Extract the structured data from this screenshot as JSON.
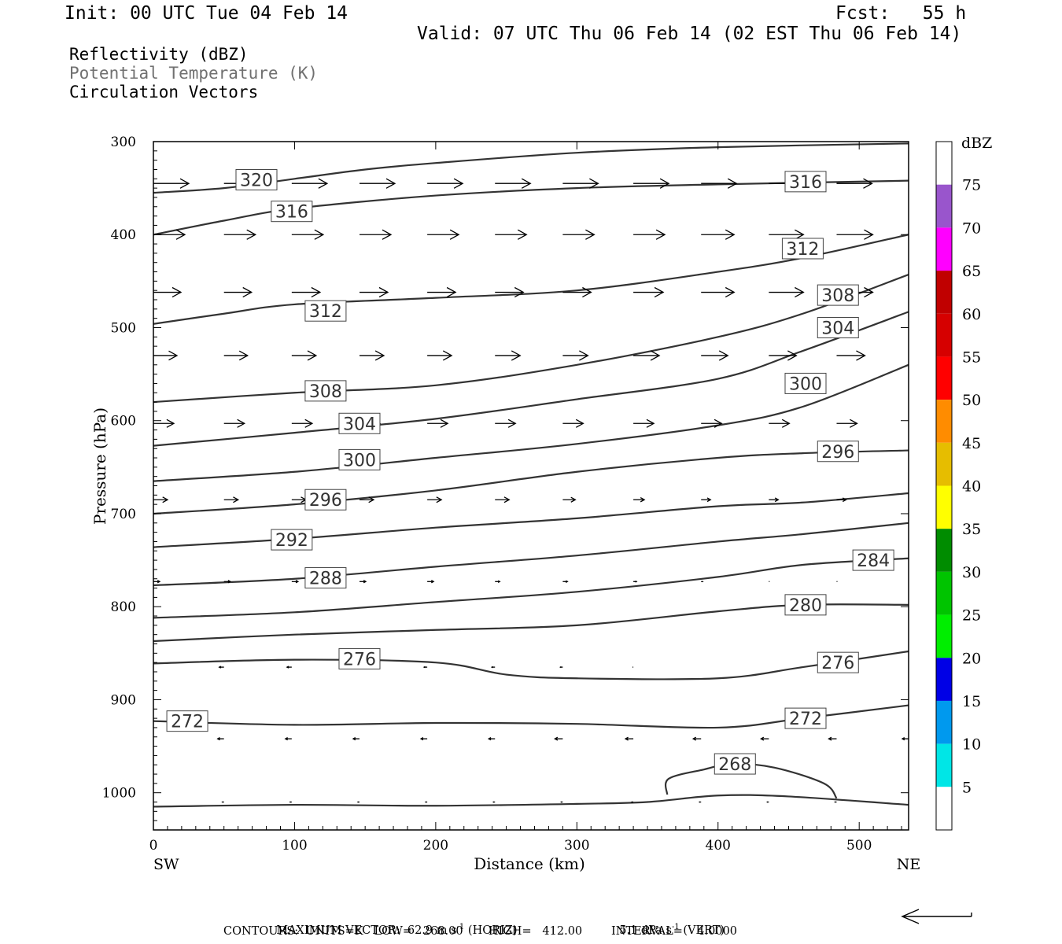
{
  "header": {
    "init": "Init: 00 UTC Tue 04 Feb 14",
    "fcst": "Fcst:   55 h",
    "valid": "Valid: 07 UTC Thu 06 Feb 14 (02 EST Thu 06 Feb 14)"
  },
  "fields": {
    "line1": "Reflectivity (dBZ)",
    "line2": "Potential Temperature (K)",
    "line3": "Circulation Vectors"
  },
  "footer": {
    "max_vector_label": "MAXIMUM VECTOR:  62.9 m s",
    "horiz": "(HORIZ)",
    "vert_value": "5.1 dPa s",
    "vert": "(VERT)",
    "contours_line": "CONTOURS:  UNITS=K   LOW=   268.00       HIGH=   412.00        INTERVAL=    4.0000",
    "exponent": "-1"
  },
  "colors": {
    "contour": "#333333",
    "vector": "#000000",
    "frame": "#000000"
  },
  "chart_data": {
    "type": "line",
    "title": "",
    "xlabel": "Distance (km)",
    "ylabel": "Pressure (hPa)",
    "xlim": [
      0,
      535
    ],
    "ylim": [
      1040,
      300
    ],
    "y_scale": "linear-reversed",
    "x_ticks": [
      0,
      100,
      200,
      300,
      400,
      500
    ],
    "y_ticks": [
      300,
      400,
      500,
      600,
      700,
      800,
      900,
      1000
    ],
    "x_end_labels": {
      "left": "SW",
      "right": "NE"
    },
    "colorbar": {
      "title": "dBZ",
      "ticks": [
        5,
        10,
        15,
        20,
        25,
        30,
        35,
        40,
        45,
        50,
        55,
        60,
        65,
        70,
        75
      ],
      "colors": [
        "#ffffff",
        "#00e6e6",
        "#0099ee",
        "#0000e6",
        "#00ee00",
        "#00c400",
        "#008c00",
        "#ffff00",
        "#e6bd00",
        "#ff8c00",
        "#ff0000",
        "#d60000",
        "#c00000",
        "#ff00ff",
        "#9955cc",
        "#ffffff"
      ]
    },
    "series": [
      {
        "name": "320",
        "points": [
          [
            0,
            355
          ],
          [
            50,
            350
          ],
          [
            100,
            340
          ],
          [
            150,
            330
          ],
          [
            200,
            323
          ],
          [
            300,
            312
          ],
          [
            400,
            306
          ],
          [
            535,
            302
          ]
        ],
        "labels": [
          [
            73,
            341
          ]
        ]
      },
      {
        "name": "316",
        "points": [
          [
            0,
            400
          ],
          [
            50,
            385
          ],
          [
            100,
            372
          ],
          [
            200,
            358
          ],
          [
            300,
            350
          ],
          [
            400,
            346
          ],
          [
            535,
            342
          ]
        ],
        "labels": [
          [
            98,
            375
          ],
          [
            462,
            343
          ]
        ]
      },
      {
        "name": "312",
        "points": [
          [
            0,
            496
          ],
          [
            50,
            485
          ],
          [
            100,
            475
          ],
          [
            200,
            468
          ],
          [
            300,
            460
          ],
          [
            400,
            440
          ],
          [
            460,
            425
          ],
          [
            535,
            400
          ]
        ],
        "labels": [
          [
            122,
            482
          ],
          [
            460,
            415
          ]
        ]
      },
      {
        "name": "308",
        "points": [
          [
            0,
            580
          ],
          [
            100,
            570
          ],
          [
            200,
            562
          ],
          [
            300,
            540
          ],
          [
            400,
            510
          ],
          [
            460,
            485
          ],
          [
            535,
            443
          ]
        ],
        "labels": [
          [
            122,
            568
          ],
          [
            485,
            465
          ]
        ]
      },
      {
        "name": "304",
        "points": [
          [
            0,
            627
          ],
          [
            100,
            613
          ],
          [
            200,
            598
          ],
          [
            300,
            577
          ],
          [
            400,
            555
          ],
          [
            460,
            525
          ],
          [
            535,
            483
          ]
        ],
        "labels": [
          [
            146,
            603
          ],
          [
            485,
            500
          ]
        ]
      },
      {
        "name": "300",
        "points": [
          [
            0,
            665
          ],
          [
            100,
            655
          ],
          [
            200,
            640
          ],
          [
            300,
            625
          ],
          [
            400,
            605
          ],
          [
            460,
            585
          ],
          [
            535,
            540
          ]
        ],
        "labels": [
          [
            146,
            642
          ],
          [
            462,
            560
          ]
        ]
      },
      {
        "name": "296",
        "points": [
          [
            0,
            700
          ],
          [
            100,
            690
          ],
          [
            200,
            675
          ],
          [
            300,
            655
          ],
          [
            400,
            640
          ],
          [
            460,
            635
          ],
          [
            535,
            632
          ]
        ],
        "labels": [
          [
            122,
            685
          ],
          [
            485,
            633
          ]
        ]
      },
      {
        "name": "292",
        "points": [
          [
            0,
            736
          ],
          [
            100,
            727
          ],
          [
            200,
            715
          ],
          [
            300,
            705
          ],
          [
            400,
            692
          ],
          [
            460,
            688
          ],
          [
            535,
            678
          ]
        ],
        "labels": [
          [
            98,
            728
          ]
        ]
      },
      {
        "name": "288",
        "points": [
          [
            0,
            777
          ],
          [
            100,
            770
          ],
          [
            200,
            757
          ],
          [
            300,
            745
          ],
          [
            400,
            730
          ],
          [
            460,
            722
          ],
          [
            535,
            710
          ]
        ],
        "labels": [
          [
            122,
            769
          ]
        ]
      },
      {
        "name": "284",
        "points": [
          [
            0,
            812
          ],
          [
            100,
            806
          ],
          [
            200,
            795
          ],
          [
            300,
            784
          ],
          [
            400,
            768
          ],
          [
            460,
            755
          ],
          [
            535,
            748
          ]
        ],
        "labels": [
          [
            510,
            750
          ]
        ]
      },
      {
        "name": "280",
        "points": [
          [
            0,
            837
          ],
          [
            100,
            830
          ],
          [
            200,
            825
          ],
          [
            300,
            820
          ],
          [
            400,
            805
          ],
          [
            460,
            798
          ],
          [
            535,
            798
          ]
        ],
        "labels": [
          [
            462,
            798
          ]
        ]
      },
      {
        "name": "276",
        "points": [
          [
            0,
            861
          ],
          [
            100,
            857
          ],
          [
            200,
            860
          ],
          [
            250,
            873
          ],
          [
            300,
            877
          ],
          [
            400,
            877
          ],
          [
            460,
            865
          ],
          [
            535,
            848
          ]
        ],
        "labels": [
          [
            146,
            856
          ],
          [
            485,
            860
          ]
        ]
      },
      {
        "name": "272",
        "points": [
          [
            0,
            923
          ],
          [
            100,
            927
          ],
          [
            200,
            925
          ],
          [
            300,
            926
          ],
          [
            400,
            930
          ],
          [
            460,
            920
          ],
          [
            535,
            906
          ]
        ],
        "labels": [
          [
            24,
            923
          ],
          [
            462,
            920
          ]
        ]
      },
      {
        "name": "268",
        "points": [
          [
            364,
            1002
          ],
          [
            365,
            985
          ],
          [
            390,
            975
          ],
          [
            410,
            969
          ],
          [
            440,
            973
          ],
          [
            475,
            990
          ],
          [
            484,
            1006
          ]
        ],
        "labels": [
          [
            412,
            969
          ]
        ]
      },
      {
        "name": "surface",
        "points": [
          [
            0,
            1015
          ],
          [
            100,
            1013
          ],
          [
            200,
            1014
          ],
          [
            300,
            1012
          ],
          [
            350,
            1010
          ],
          [
            400,
            1003
          ],
          [
            450,
            1004
          ],
          [
            535,
            1013
          ]
        ],
        "labels": []
      }
    ],
    "vectors": [
      {
        "p": 345,
        "x": [
          0,
          50,
          98,
          146,
          194,
          242,
          290,
          340,
          388,
          436,
          484,
          535
        ],
        "len": [
          45,
          45,
          45,
          45,
          45,
          45,
          45,
          45,
          45,
          45,
          45,
          45
        ]
      },
      {
        "p": 400,
        "x": [
          0,
          50,
          98,
          146,
          194,
          242,
          290,
          340,
          388,
          436,
          484,
          535
        ],
        "len": [
          40,
          40,
          40,
          40,
          40,
          40,
          40,
          40,
          42,
          44,
          46,
          46
        ]
      },
      {
        "p": 462,
        "x": [
          0,
          50,
          98,
          146,
          194,
          242,
          290,
          340,
          388,
          436,
          484,
          535
        ],
        "len": [
          35,
          35,
          36,
          36,
          36,
          36,
          36,
          38,
          42,
          44,
          46,
          46
        ]
      },
      {
        "p": 530,
        "x": [
          0,
          50,
          98,
          146,
          194,
          242,
          290,
          340,
          388,
          436,
          484
        ],
        "len": [
          30,
          30,
          31,
          31,
          31,
          32,
          32,
          33,
          34,
          35,
          36
        ]
      },
      {
        "p": 603,
        "x": [
          0,
          50,
          98,
          146,
          194,
          242,
          290,
          340,
          388,
          436,
          484
        ],
        "len": [
          26,
          26,
          26,
          26,
          26,
          26,
          26,
          26,
          26,
          26,
          26
        ]
      },
      {
        "p": 685,
        "x": [
          0,
          50,
          98,
          146,
          194,
          242,
          290,
          340,
          388,
          436,
          484
        ],
        "len": [
          18,
          18,
          18,
          18,
          18,
          18,
          16,
          14,
          12,
          12,
          12
        ]
      },
      {
        "p": 773,
        "x": [
          0,
          50,
          98,
          146,
          194,
          242,
          290,
          340,
          388,
          436,
          484
        ],
        "len": [
          8,
          8,
          8,
          8,
          8,
          6,
          6,
          4,
          2,
          1,
          1
        ]
      },
      {
        "p": 865,
        "x": [
          50,
          98,
          146,
          194,
          242,
          290,
          340,
          388,
          436
        ],
        "len": [
          -6,
          -6,
          -4,
          -4,
          -4,
          -3,
          -1,
          0,
          0
        ]
      },
      {
        "p": 942,
        "x": [
          0,
          50,
          98,
          146,
          194,
          242,
          290,
          340,
          388,
          436,
          484,
          535
        ],
        "len": [
          -8,
          -8,
          -8,
          -8,
          -8,
          -8,
          -10,
          -10,
          -10,
          -10,
          -10,
          -8
        ]
      },
      {
        "p": 1010,
        "x": [
          50,
          98,
          146,
          194,
          242,
          290,
          340,
          388,
          436,
          484
        ],
        "len": [
          -2,
          -2,
          -2,
          -2,
          -2,
          -2,
          -2,
          -2,
          -2,
          -2
        ]
      }
    ]
  }
}
